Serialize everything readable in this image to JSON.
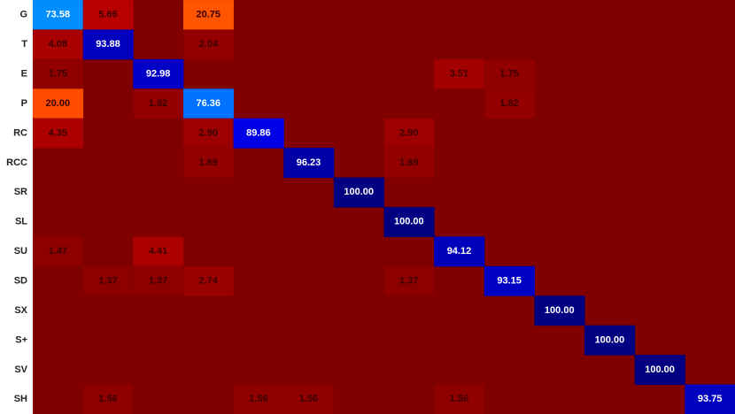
{
  "chart_data": {
    "type": "heatmap",
    "colormap": "jet_r",
    "rows": [
      "G",
      "T",
      "E",
      "P",
      "RC",
      "RCC",
      "SR",
      "SL",
      "SU",
      "SD",
      "SX",
      "S+",
      "SV",
      "SH"
    ],
    "values": [
      [
        73.58,
        5.66,
        null,
        20.75,
        null,
        null,
        null,
        null,
        null,
        null,
        null,
        null,
        null,
        null
      ],
      [
        4.08,
        93.88,
        null,
        2.04,
        null,
        null,
        null,
        null,
        null,
        null,
        null,
        null,
        null,
        null
      ],
      [
        1.75,
        null,
        92.98,
        null,
        null,
        null,
        null,
        null,
        3.51,
        1.75,
        null,
        null,
        null,
        null
      ],
      [
        20,
        null,
        1.82,
        76.36,
        null,
        null,
        null,
        null,
        null,
        1.82,
        null,
        null,
        null,
        null
      ],
      [
        4.35,
        null,
        null,
        2.9,
        89.86,
        null,
        null,
        2.9,
        null,
        null,
        null,
        null,
        null,
        null
      ],
      [
        null,
        null,
        null,
        1.89,
        null,
        96.23,
        null,
        1.89,
        null,
        null,
        null,
        null,
        null,
        null
      ],
      [
        null,
        null,
        null,
        null,
        null,
        null,
        100,
        null,
        null,
        null,
        null,
        null,
        null,
        null
      ],
      [
        null,
        null,
        null,
        null,
        null,
        null,
        null,
        100,
        null,
        null,
        null,
        null,
        null,
        null
      ],
      [
        1.47,
        null,
        4.41,
        null,
        null,
        null,
        null,
        null,
        94.12,
        null,
        null,
        null,
        null,
        null
      ],
      [
        null,
        1.37,
        1.37,
        2.74,
        null,
        null,
        null,
        1.37,
        null,
        93.15,
        null,
        null,
        null,
        null
      ],
      [
        null,
        null,
        null,
        null,
        null,
        null,
        null,
        null,
        null,
        null,
        100,
        null,
        null,
        null
      ],
      [
        null,
        null,
        null,
        null,
        null,
        null,
        null,
        null,
        null,
        null,
        null,
        100,
        null,
        null
      ],
      [
        null,
        null,
        null,
        null,
        null,
        null,
        null,
        null,
        null,
        null,
        null,
        null,
        100,
        null
      ],
      [
        null,
        1.56,
        null,
        null,
        1.56,
        1.56,
        null,
        null,
        1.56,
        null,
        null,
        null,
        null,
        93.75
      ]
    ],
    "value_labels": [
      [
        "73.58",
        "5.66",
        null,
        "20.75",
        null,
        null,
        null,
        null,
        null,
        null,
        null,
        null,
        null,
        null
      ],
      [
        "4.08",
        "93.88",
        null,
        "2.04",
        null,
        null,
        null,
        null,
        null,
        null,
        null,
        null,
        null,
        null
      ],
      [
        "1.75",
        null,
        "92.98",
        null,
        null,
        null,
        null,
        null,
        "3.51",
        "1.75",
        null,
        null,
        null,
        null
      ],
      [
        "20.00",
        null,
        "1.82",
        "76.36",
        null,
        null,
        null,
        null,
        null,
        "1.82",
        null,
        null,
        null,
        null
      ],
      [
        "4.35",
        null,
        null,
        "2.90",
        "89.86",
        null,
        null,
        "2.90",
        null,
        null,
        null,
        null,
        null,
        null
      ],
      [
        null,
        null,
        null,
        "1.89",
        null,
        "96.23",
        null,
        "1.89",
        null,
        null,
        null,
        null,
        null,
        null
      ],
      [
        null,
        null,
        null,
        null,
        null,
        null,
        "100.00",
        null,
        null,
        null,
        null,
        null,
        null,
        null
      ],
      [
        null,
        null,
        null,
        null,
        null,
        null,
        null,
        "100.00",
        null,
        null,
        null,
        null,
        null,
        null
      ],
      [
        "1.47",
        null,
        "4.41",
        null,
        null,
        null,
        null,
        null,
        "94.12",
        null,
        null,
        null,
        null,
        null
      ],
      [
        null,
        "1.37",
        "1.37",
        "2.74",
        null,
        null,
        null,
        "1.37",
        null,
        "93.15",
        null,
        null,
        null,
        null
      ],
      [
        null,
        null,
        null,
        null,
        null,
        null,
        null,
        null,
        null,
        null,
        "100.00",
        null,
        null,
        null
      ],
      [
        null,
        null,
        null,
        null,
        null,
        null,
        null,
        null,
        null,
        null,
        null,
        "100.00",
        null,
        null
      ],
      [
        null,
        null,
        null,
        null,
        null,
        null,
        null,
        null,
        null,
        null,
        null,
        null,
        "100.00",
        null
      ],
      [
        null,
        "1.56",
        null,
        null,
        "1.56",
        "1.56",
        null,
        null,
        "1.56",
        null,
        null,
        null,
        null,
        "93.75"
      ]
    ]
  }
}
